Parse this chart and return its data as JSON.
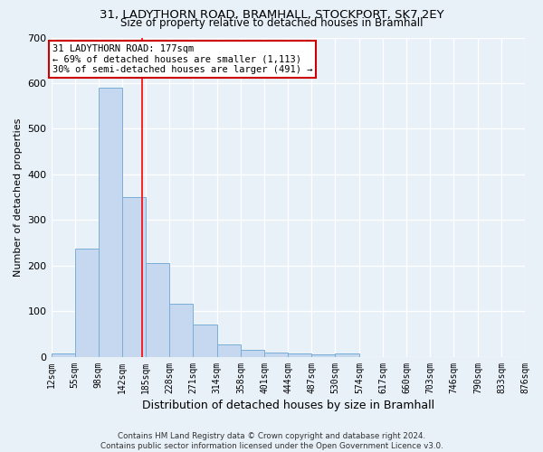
{
  "title1": "31, LADYTHORN ROAD, BRAMHALL, STOCKPORT, SK7 2EY",
  "title2": "Size of property relative to detached houses in Bramhall",
  "xlabel": "Distribution of detached houses by size in Bramhall",
  "ylabel": "Number of detached properties",
  "footnote": "Contains HM Land Registry data © Crown copyright and database right 2024.\nContains public sector information licensed under the Open Government Licence v3.0.",
  "bin_edges": [
    12,
    55,
    98,
    142,
    185,
    228,
    271,
    314,
    358,
    401,
    444,
    487,
    530,
    574,
    617,
    660,
    703,
    746,
    790,
    833,
    876
  ],
  "bar_heights": [
    7,
    237,
    590,
    350,
    205,
    117,
    72,
    28,
    15,
    10,
    7,
    5,
    7,
    0,
    0,
    0,
    0,
    0,
    0,
    0
  ],
  "bar_color": "#c5d8f0",
  "bar_edgecolor": "#7aaed6",
  "bg_color": "#e8f0f8",
  "grid_color": "#ffffff",
  "red_line_x": 177,
  "annotation_line1": "31 LADYTHORN ROAD: 177sqm",
  "annotation_line2": "← 69% of detached houses are smaller (1,113)",
  "annotation_line3": "30% of semi-detached houses are larger (491) →",
  "annotation_box_color": "#ffffff",
  "annotation_box_edgecolor": "#cc0000",
  "ylim": [
    0,
    700
  ],
  "yticks": [
    0,
    100,
    200,
    300,
    400,
    500,
    600,
    700
  ]
}
